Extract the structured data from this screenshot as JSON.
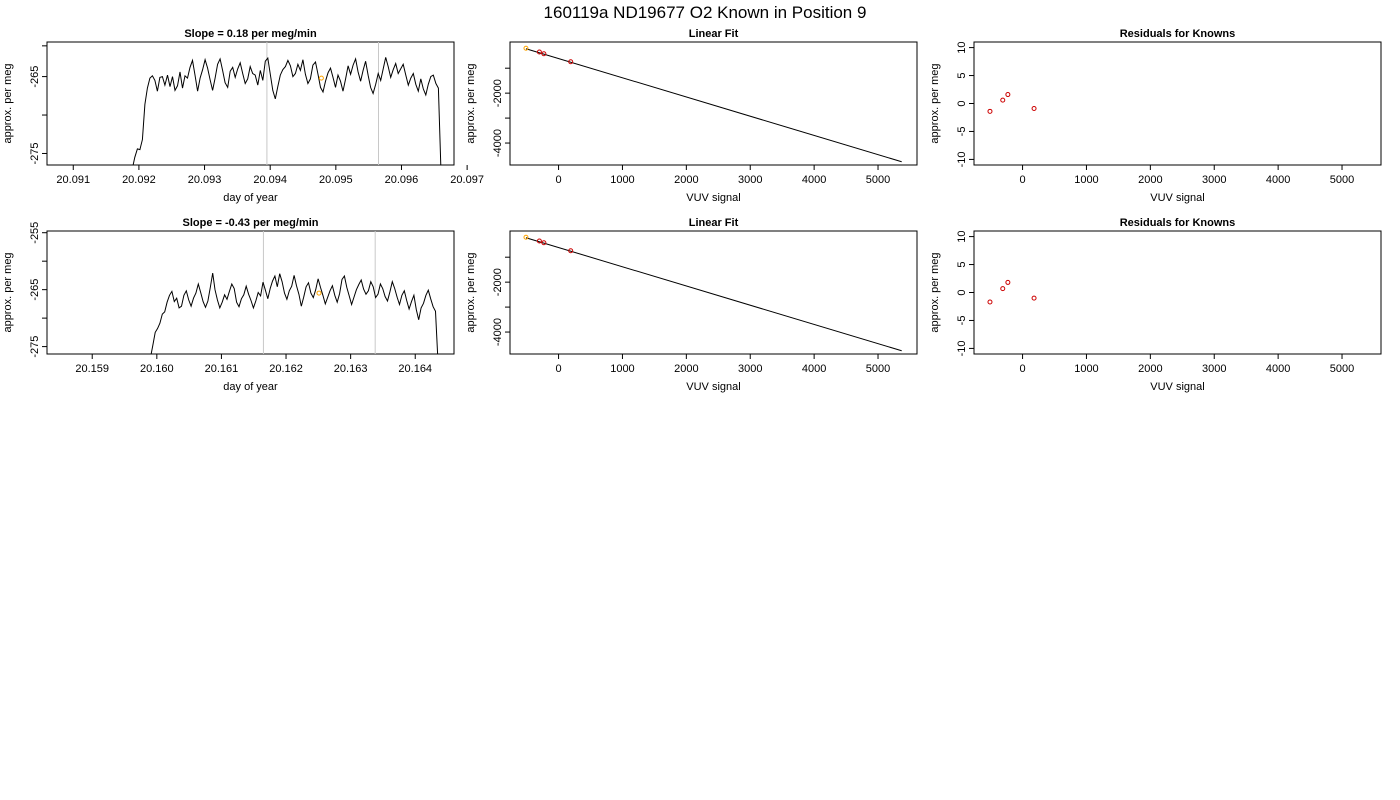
{
  "page": {
    "title": "160119a     ND19677   O2 Known in Position  9"
  },
  "chart_data": [
    {
      "type": "line",
      "title": "Slope =  0.18  per meg/min",
      "xlabel": "day of year",
      "ylabel": "approx. per meg",
      "xlim": [
        20.0906,
        20.0968
      ],
      "ylim": [
        -276.5,
        -260.5
      ],
      "xticks": [
        "20.091",
        "20.092",
        "20.093",
        "20.094",
        "20.095",
        "20.096",
        "20.097"
      ],
      "xtick_values": [
        20.091,
        20.092,
        20.093,
        20.094,
        20.095,
        20.096,
        20.097
      ],
      "yticks": [
        "-275",
        "-265"
      ],
      "ytick_values": [
        -275,
        -265
      ],
      "yticks_minor": [
        -270,
        -261
      ],
      "vlines": [
        20.09395,
        20.09565
      ],
      "series": [
        {
          "color": "#000000",
          "x_start": 20.0919,
          "x_end": 20.0966,
          "y": [
            -277,
            -275.5,
            -274.4,
            -274.5,
            -273.2,
            -268.6,
            -266.5,
            -265.2,
            -264.9,
            -265.5,
            -266.9,
            -265.1,
            -265.0,
            -266.1,
            -264.8,
            -266.3,
            -265.0,
            -266.8,
            -266.2,
            -264.4,
            -266.5,
            -264.9,
            -265.2,
            -263.8,
            -262.9,
            -264.8,
            -266.9,
            -265.2,
            -264.1,
            -262.8,
            -263.9,
            -265.4,
            -266.8,
            -265.2,
            -263.4,
            -262.7,
            -264.2,
            -265.8,
            -266.4,
            -264.3,
            -263.8,
            -265.1,
            -264.0,
            -263.2,
            -264.6,
            -265.9,
            -265.3,
            -263.7,
            -264.6,
            -264.8,
            -266.1,
            -264.2,
            -265.5,
            -263.0,
            -262.6,
            -264.7,
            -266.8,
            -267.9,
            -266.3,
            -264.8,
            -264.1,
            -263.7,
            -262.9,
            -263.6,
            -265.0,
            -264.6,
            -263.4,
            -264.2,
            -262.8,
            -264.7,
            -265.9,
            -265.3,
            -263.5,
            -263.1,
            -264.7,
            -266.4,
            -267.0,
            -265.6,
            -264.5,
            -263.9,
            -265.1,
            -266.4,
            -264.8,
            -265.6,
            -266.9,
            -265.3,
            -263.6,
            -264.7,
            -263.5,
            -262.7,
            -264.4,
            -265.6,
            -264.2,
            -263.0,
            -264.8,
            -266.4,
            -267.2,
            -266.0,
            -264.6,
            -265.5,
            -264.0,
            -262.5,
            -263.7,
            -265.1,
            -264.1,
            -263.3,
            -264.6,
            -264.0,
            -263.4,
            -264.8,
            -266.1,
            -265.2,
            -264.6,
            -266.0,
            -266.9,
            -265.3,
            -266.6,
            -267.4,
            -266.0,
            -265.0,
            -264.8,
            -265.9,
            -266.5,
            -277.0
          ]
        }
      ],
      "points": [
        {
          "x": 20.09478,
          "y": -265.2,
          "color": "#ffa500"
        }
      ]
    },
    {
      "type": "line",
      "title": "Linear Fit",
      "xlabel": "VUV signal",
      "ylabel": "approx. per meg",
      "xlim": [
        -760,
        5610
      ],
      "ylim": [
        -4880,
        50
      ],
      "xticks": [
        "0",
        "1000",
        "2000",
        "3000",
        "4000",
        "5000"
      ],
      "xtick_values": [
        0,
        1000,
        2000,
        3000,
        4000,
        5000
      ],
      "yticks": [
        "-2000",
        "-4000"
      ],
      "ytick_values": [
        -2000,
        -4000
      ],
      "yticks_minor": [
        -1000,
        -3000
      ],
      "fit_line": {
        "x": [
          -510,
          5370
        ],
        "y": [
          -220,
          -4750
        ]
      },
      "points": [
        {
          "x": -510,
          "y": -200,
          "color": "#ffa500"
        },
        {
          "x": -300,
          "y": -350,
          "color": "#cc0000"
        },
        {
          "x": -230,
          "y": -420,
          "color": "#cc0000"
        },
        {
          "x": 190,
          "y": -740,
          "color": "#cc0000"
        }
      ]
    },
    {
      "type": "scatter",
      "title": "Residuals for Knowns",
      "xlabel": "VUV signal",
      "ylabel": "approx. per meg",
      "xlim": [
        -760,
        5610
      ],
      "ylim": [
        -11,
        11
      ],
      "xticks": [
        "0",
        "1000",
        "2000",
        "3000",
        "4000",
        "5000"
      ],
      "xtick_values": [
        0,
        1000,
        2000,
        3000,
        4000,
        5000
      ],
      "yticks": [
        "10",
        "5",
        "0",
        "-5",
        "-10"
      ],
      "ytick_values": [
        10,
        5,
        0,
        -5,
        -10
      ],
      "points": [
        {
          "x": -510,
          "y": -1.4,
          "color": "#cc0000"
        },
        {
          "x": -310,
          "y": 0.6,
          "color": "#cc0000"
        },
        {
          "x": -230,
          "y": 1.6,
          "color": "#cc0000"
        },
        {
          "x": 180,
          "y": -0.9,
          "color": "#cc0000"
        }
      ]
    },
    {
      "type": "line",
      "title": "Slope =  -0.43  per meg/min",
      "xlabel": "day of year",
      "ylabel": "approx. per meg",
      "xlim": [
        20.1583,
        20.1646
      ],
      "ylim": [
        -276.3,
        -254.7
      ],
      "xticks": [
        "20.159",
        "20.160",
        "20.161",
        "20.162",
        "20.163",
        "20.164"
      ],
      "xtick_values": [
        20.159,
        20.16,
        20.161,
        20.162,
        20.163,
        20.164
      ],
      "yticks": [
        "-255",
        "-265",
        "-275"
      ],
      "ytick_values": [
        -255,
        -265,
        -275
      ],
      "yticks_minor": [
        -260,
        -270
      ],
      "vlines": [
        20.16165,
        20.16338
      ],
      "series": [
        {
          "color": "#000000",
          "x_start": 20.1599,
          "x_end": 20.16435,
          "y": [
            -277,
            -274.8,
            -272.5,
            -271.8,
            -270.9,
            -269.3,
            -268.9,
            -267.2,
            -266.0,
            -265.3,
            -267.1,
            -266.5,
            -268.2,
            -267.9,
            -266.0,
            -265.2,
            -266.8,
            -267.9,
            -266.5,
            -265.6,
            -264.0,
            -265.5,
            -267.1,
            -268.1,
            -267.0,
            -264.6,
            -262.1,
            -265.0,
            -266.8,
            -268.2,
            -267.2,
            -265.9,
            -266.7,
            -265.3,
            -264.0,
            -264.8,
            -267.2,
            -268.0,
            -266.6,
            -265.9,
            -264.4,
            -265.8,
            -266.9,
            -268.2,
            -267.0,
            -265.5,
            -266.1,
            -263.7,
            -265.1,
            -266.6,
            -264.8,
            -263.5,
            -262.6,
            -264.5,
            -262.2,
            -263.6,
            -265.6,
            -266.7,
            -265.2,
            -264.4,
            -262.5,
            -264.3,
            -265.8,
            -267.9,
            -266.3,
            -264.5,
            -263.8,
            -265.6,
            -266.4,
            -265.0,
            -263.1,
            -264.6,
            -266.0,
            -267.5,
            -266.4,
            -265.2,
            -264.3,
            -266.0,
            -267.2,
            -265.7,
            -263.2,
            -262.6,
            -264.6,
            -266.1,
            -267.6,
            -266.3,
            -265.0,
            -264.1,
            -263.3,
            -264.9,
            -265.8,
            -265.2,
            -263.6,
            -264.5,
            -266.4,
            -265.8,
            -264.0,
            -264.8,
            -266.2,
            -267.0,
            -265.4,
            -263.6,
            -264.8,
            -266.3,
            -267.6,
            -266.0,
            -265.2,
            -266.9,
            -268.4,
            -267.1,
            -266.0,
            -268.5,
            -270.3,
            -268.2,
            -267.4,
            -266.0,
            -265.1,
            -266.6,
            -268.0,
            -268.8,
            -277.0
          ]
        }
      ],
      "points": [
        {
          "x": 20.16251,
          "y": -265.6,
          "color": "#ffa500"
        }
      ]
    },
    {
      "type": "line",
      "title": "Linear Fit",
      "xlabel": "VUV signal",
      "ylabel": "approx. per meg",
      "xlim": [
        -760,
        5610
      ],
      "ylim": [
        -4880,
        50
      ],
      "xticks": [
        "0",
        "1000",
        "2000",
        "3000",
        "4000",
        "5000"
      ],
      "xtick_values": [
        0,
        1000,
        2000,
        3000,
        4000,
        5000
      ],
      "yticks": [
        "-2000",
        "-4000"
      ],
      "ytick_values": [
        -2000,
        -4000
      ],
      "yticks_minor": [
        -1000,
        -3000
      ],
      "fit_line": {
        "x": [
          -510,
          5370
        ],
        "y": [
          -220,
          -4750
        ]
      },
      "points": [
        {
          "x": -510,
          "y": -200,
          "color": "#ffa500"
        },
        {
          "x": -300,
          "y": -350,
          "color": "#cc0000"
        },
        {
          "x": -230,
          "y": -420,
          "color": "#cc0000"
        },
        {
          "x": 190,
          "y": -740,
          "color": "#cc0000"
        }
      ]
    },
    {
      "type": "scatter",
      "title": "Residuals for Knowns",
      "xlabel": "VUV signal",
      "ylabel": "approx. per meg",
      "xlim": [
        -760,
        5610
      ],
      "ylim": [
        -11,
        11
      ],
      "xticks": [
        "0",
        "1000",
        "2000",
        "3000",
        "4000",
        "5000"
      ],
      "xtick_values": [
        0,
        1000,
        2000,
        3000,
        4000,
        5000
      ],
      "yticks": [
        "10",
        "5",
        "0",
        "-5",
        "-10"
      ],
      "ytick_values": [
        10,
        5,
        0,
        -5,
        -10
      ],
      "points": [
        {
          "x": -510,
          "y": -1.7,
          "color": "#cc0000"
        },
        {
          "x": -310,
          "y": 0.7,
          "color": "#cc0000"
        },
        {
          "x": -230,
          "y": 1.8,
          "color": "#cc0000"
        },
        {
          "x": 180,
          "y": -1.0,
          "color": "#cc0000"
        }
      ]
    }
  ]
}
